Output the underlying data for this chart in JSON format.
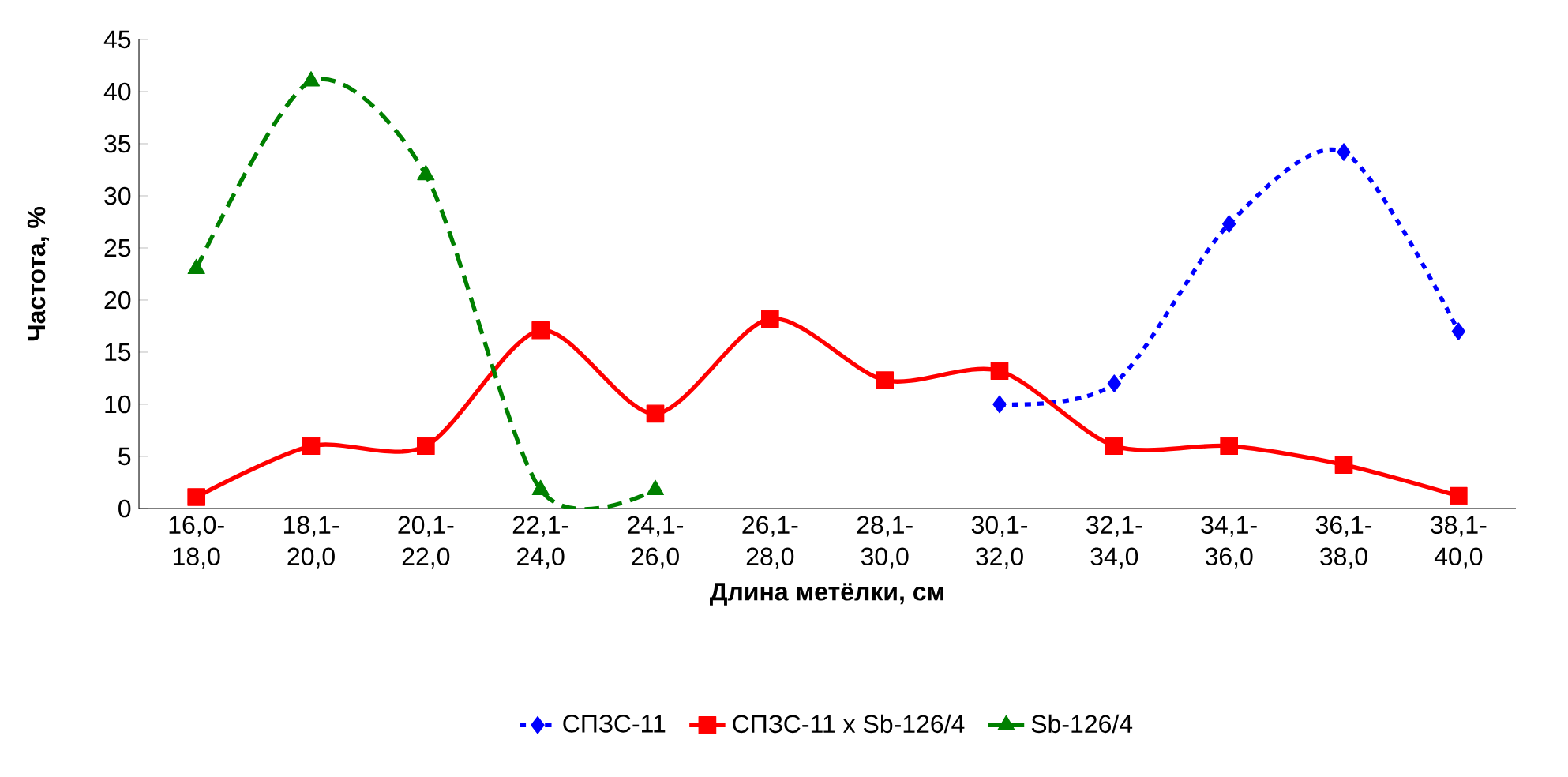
{
  "chart_data": {
    "type": "line",
    "xlabel": "Длина метёлки, см",
    "ylabel": "Частота, %",
    "categories": [
      "16,0-18,0",
      "18,1-20,0",
      "20,1-22,0",
      "22,1-24,0",
      "24,1-26,0",
      "26,1-28,0",
      "28,1-30,0",
      "30,1-32,0",
      "32,1-34,0",
      "34,1-36,0",
      "36,1-38,0",
      "38,1-40,0"
    ],
    "series": [
      {
        "name": "СПЗС-11",
        "color": "#0000ff",
        "marker": "diamond",
        "line_style": "dotted",
        "values": [
          null,
          null,
          null,
          null,
          null,
          null,
          null,
          10,
          12,
          27.3,
          34.2,
          17
        ]
      },
      {
        "name": "СПЗС-11 x Sb-126/4",
        "color": "#ff0000",
        "marker": "square",
        "line_style": "solid",
        "values": [
          1.1,
          6,
          6,
          17.1,
          9.1,
          18.2,
          12.3,
          13.2,
          6,
          6,
          4.2,
          1.2
        ]
      },
      {
        "name": "Sb-126/4",
        "color": "#008000",
        "marker": "triangle",
        "line_style": "dashed",
        "values": [
          23,
          41,
          32,
          1.8,
          1.8,
          null,
          null,
          null,
          null,
          null,
          null,
          null
        ]
      }
    ],
    "ylim": [
      0,
      45
    ],
    "yticks": [
      0,
      5,
      10,
      15,
      20,
      25,
      30,
      35,
      40,
      45
    ],
    "grid": false,
    "legend": "bottom"
  }
}
